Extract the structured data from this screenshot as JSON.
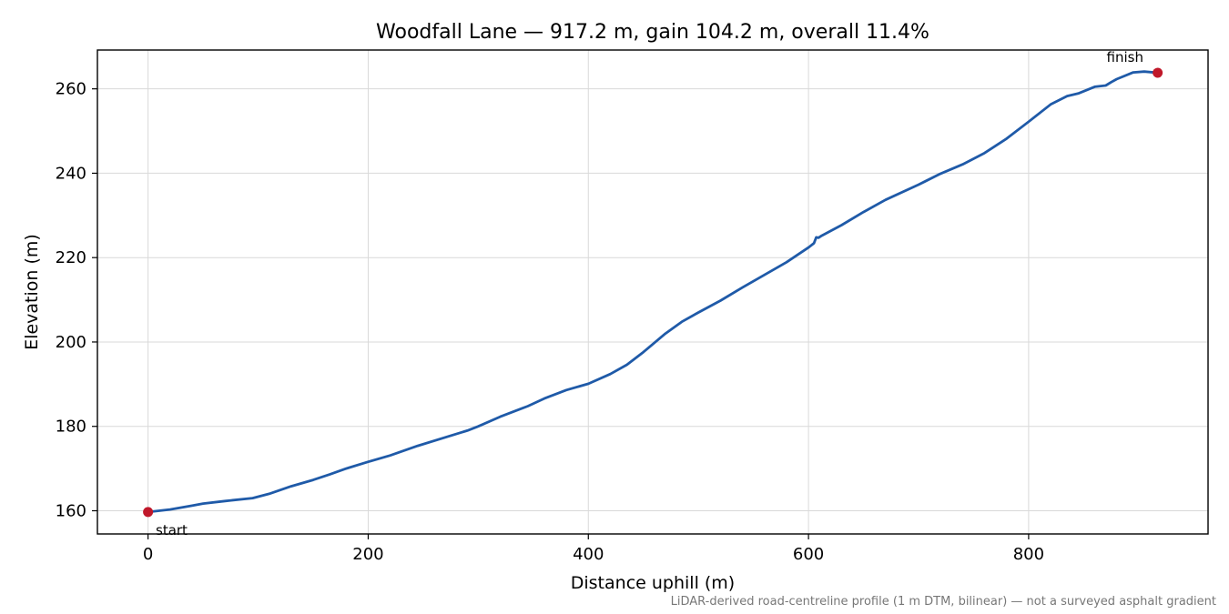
{
  "chart_data": {
    "type": "line",
    "title": "Woodfall Lane — 917.2 m, gain 104.2 m, overall 11.4%",
    "xlabel": "Distance uphill (m)",
    "ylabel": "Elevation (m)",
    "xlim": [
      -46,
      963
    ],
    "ylim": [
      154.5,
      269.2
    ],
    "xticks": [
      0,
      200,
      400,
      600,
      800
    ],
    "yticks": [
      160,
      180,
      200,
      220,
      240,
      260
    ],
    "grid": true,
    "line_color": "#1f5aa8",
    "marker_color": "#c0182a",
    "series": [
      {
        "x": [
          0,
          20,
          40,
          50,
          70,
          95,
          110,
          130,
          150,
          165,
          180,
          200,
          220,
          245,
          270,
          290,
          300,
          320,
          340,
          345,
          360,
          380,
          400,
          420,
          435,
          450,
          470,
          485,
          500,
          520,
          540,
          560,
          580,
          600,
          605,
          607,
          609,
          612,
          630,
          650,
          670,
          700,
          720,
          740,
          760,
          780,
          800,
          820,
          835,
          845,
          860,
          870,
          875,
          880,
          895,
          905,
          917.2
        ],
        "y": [
          159.7,
          160.3,
          161.2,
          161.7,
          162.3,
          163.0,
          164.0,
          165.8,
          167.3,
          168.6,
          170.0,
          171.6,
          173.1,
          175.4,
          177.4,
          179.0,
          180.0,
          182.3,
          184.3,
          184.8,
          186.6,
          188.6,
          190.1,
          192.4,
          194.6,
          197.6,
          202.0,
          204.8,
          207.0,
          209.8,
          212.9,
          215.9,
          218.9,
          222.4,
          223.4,
          224.8,
          224.7,
          225.2,
          227.7,
          230.8,
          233.7,
          237.3,
          239.9,
          242.1,
          244.8,
          248.2,
          252.2,
          256.3,
          258.3,
          258.9,
          260.5,
          260.8,
          261.6,
          262.3,
          263.9,
          264.1,
          263.8
        ]
      }
    ],
    "annotations": {
      "start": "start",
      "finish": "finish"
    },
    "footnote": "LiDAR-derived road-centreline profile (1 m DTM, bilinear) — not a surveyed asphalt gradient"
  }
}
